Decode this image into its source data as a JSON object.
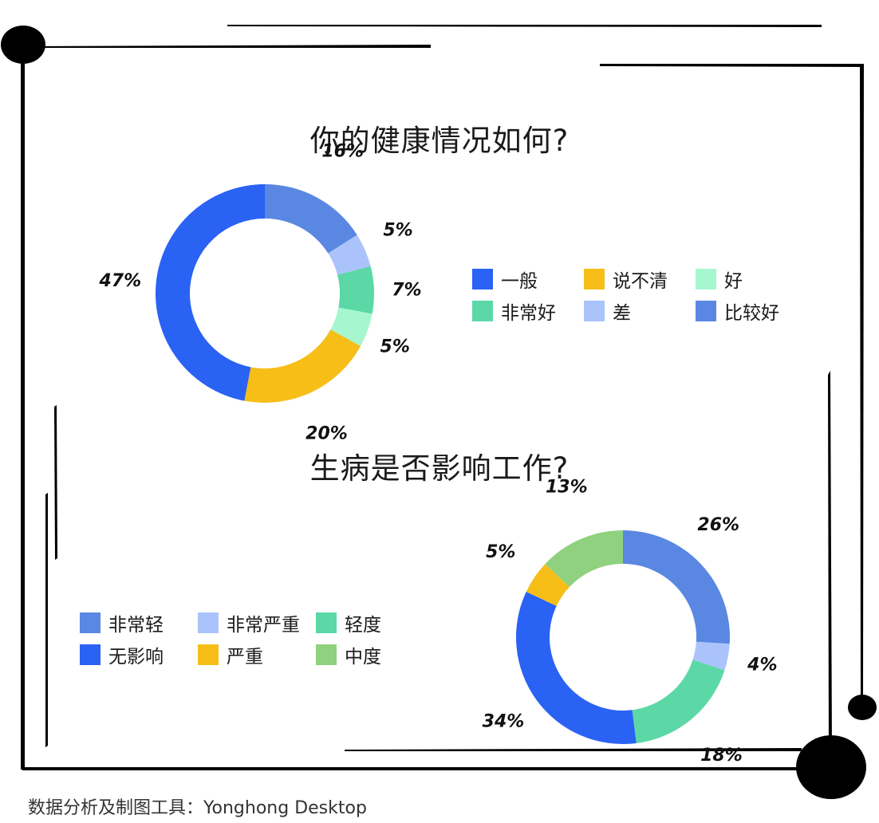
{
  "footer": {
    "credit": "数据分析及制图工具：Yonghong Desktop"
  },
  "charts": [
    {
      "title": "你的健康情况如何?",
      "legend": [
        {
          "label": "一般",
          "color": "#2A62F4"
        },
        {
          "label": "说不清",
          "color": "#F6BE17"
        },
        {
          "label": "好",
          "color": "#A6F7CF"
        },
        {
          "label": "非常好",
          "color": "#5BD8A6"
        },
        {
          "label": "差",
          "color": "#ABC3FB"
        },
        {
          "label": "比较好",
          "color": "#5A87E2"
        }
      ]
    },
    {
      "title": "生病是否影响工作?",
      "legend": [
        {
          "label": "非常轻",
          "color": "#5A87E2"
        },
        {
          "label": "非常严重",
          "color": "#ABC3FB"
        },
        {
          "label": "轻度",
          "color": "#5BD8A6"
        },
        {
          "label": "无影响",
          "color": "#2A62F4"
        },
        {
          "label": "严重",
          "color": "#F6BE17"
        },
        {
          "label": "中度",
          "color": "#8FD17E"
        }
      ]
    }
  ],
  "chart_data": [
    {
      "type": "pie",
      "title": "你的健康情况如何?",
      "slices": [
        {
          "label": "比较好",
          "value": 16,
          "display": "16%",
          "color": "#5A87E2"
        },
        {
          "label": "差",
          "value": 5,
          "display": "5%",
          "color": "#ABC3FB"
        },
        {
          "label": "非常好",
          "value": 7,
          "display": "7%",
          "color": "#5BD8A6"
        },
        {
          "label": "好",
          "value": 5,
          "display": "5%",
          "color": "#A6F7CF"
        },
        {
          "label": "说不清",
          "value": 20,
          "display": "20%",
          "color": "#F6BE17"
        },
        {
          "label": "一般",
          "value": 47,
          "display": "47%",
          "color": "#2A62F4"
        }
      ]
    },
    {
      "type": "pie",
      "title": "生病是否影响工作?",
      "slices": [
        {
          "label": "非常轻",
          "value": 26,
          "display": "26%",
          "color": "#5A87E2"
        },
        {
          "label": "非常严重",
          "value": 4,
          "display": "4%",
          "color": "#ABC3FB"
        },
        {
          "label": "轻度",
          "value": 18,
          "display": "18%",
          "color": "#5BD8A6"
        },
        {
          "label": "无影响",
          "value": 34,
          "display": "34%",
          "color": "#2A62F4"
        },
        {
          "label": "严重",
          "value": 5,
          "display": "5%",
          "color": "#F6BE17"
        },
        {
          "label": "中度",
          "value": 13,
          "display": "13%",
          "color": "#8FD17E"
        }
      ]
    }
  ]
}
